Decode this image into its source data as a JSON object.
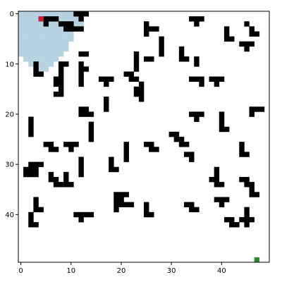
{
  "grid": {
    "rows": 50,
    "cols": 50,
    "colors": {
      "background": "#ffffff",
      "wall": "#000000",
      "explored": "#b7d3e2",
      "agent": "#cc1f33",
      "goal": "#2e8b2e",
      "frame": "#000000"
    },
    "agent": [
      4,
      1
    ],
    "goal": [
      47,
      49
    ],
    "explored_rows": [
      {
        "y": 0,
        "x0": 0,
        "x1": 12
      },
      {
        "y": 1,
        "x0": 0,
        "x1": 12
      },
      {
        "y": 2,
        "x0": 0,
        "x1": 12
      },
      {
        "y": 3,
        "x0": 0,
        "x1": 11
      },
      {
        "y": 4,
        "x0": 0,
        "x1": 10
      },
      {
        "y": 5,
        "x0": 0,
        "x1": 10
      },
      {
        "y": 6,
        "x0": 0,
        "x1": 9
      },
      {
        "y": 7,
        "x0": 0,
        "x1": 9
      },
      {
        "y": 8,
        "x0": 0,
        "x1": 8
      },
      {
        "y": 9,
        "x0": 1,
        "x1": 7
      },
      {
        "y": 10,
        "x0": 2,
        "x1": 6
      },
      {
        "y": 11,
        "x0": 3,
        "x1": 5
      }
    ],
    "walls": [
      [
        11,
        0
      ],
      [
        12,
        0
      ],
      [
        13,
        0
      ],
      [
        12,
        1
      ],
      [
        5,
        1
      ],
      [
        6,
        1
      ],
      [
        7,
        1
      ],
      [
        5,
        2
      ],
      [
        8,
        2
      ],
      [
        9,
        2
      ],
      [
        10,
        2
      ],
      [
        9,
        3
      ],
      [
        10,
        3
      ],
      [
        11,
        3
      ],
      [
        12,
        3
      ],
      [
        25,
        2
      ],
      [
        25,
        3
      ],
      [
        26,
        3
      ],
      [
        27,
        3
      ],
      [
        25,
        4
      ],
      [
        34,
        1
      ],
      [
        35,
        1
      ],
      [
        36,
        1
      ],
      [
        35,
        2
      ],
      [
        45,
        2
      ],
      [
        46,
        3
      ],
      [
        46,
        4
      ],
      [
        47,
        4
      ],
      [
        41,
        3
      ],
      [
        41,
        4
      ],
      [
        41,
        5
      ],
      [
        42,
        5
      ],
      [
        44,
        6
      ],
      [
        45,
        6
      ],
      [
        46,
        6
      ],
      [
        45,
        7
      ],
      [
        12,
        8
      ],
      [
        13,
        8
      ],
      [
        32,
        7
      ],
      [
        32,
        8
      ],
      [
        32,
        9
      ],
      [
        33,
        9
      ],
      [
        25,
        9
      ],
      [
        26,
        9
      ],
      [
        23,
        8
      ],
      [
        23,
        9
      ],
      [
        23,
        10
      ],
      [
        23,
        11
      ],
      [
        28,
        5
      ],
      [
        28,
        6
      ],
      [
        28,
        7
      ],
      [
        28,
        8
      ],
      [
        35,
        9
      ],
      [
        35,
        10
      ],
      [
        3,
        10
      ],
      [
        3,
        11
      ],
      [
        3,
        12
      ],
      [
        4,
        12
      ],
      [
        8,
        10
      ],
      [
        9,
        10
      ],
      [
        8,
        11
      ],
      [
        8,
        12
      ],
      [
        12,
        10
      ],
      [
        12,
        11
      ],
      [
        13,
        11
      ],
      [
        12,
        12
      ],
      [
        12,
        13
      ],
      [
        12,
        14
      ],
      [
        7,
        13
      ],
      [
        8,
        13
      ],
      [
        7,
        14
      ],
      [
        8,
        14
      ],
      [
        16,
        13
      ],
      [
        17,
        13
      ],
      [
        18,
        13
      ],
      [
        17,
        14
      ],
      [
        21,
        12
      ],
      [
        22,
        12
      ],
      [
        22,
        13
      ],
      [
        23,
        13
      ],
      [
        38,
        13
      ],
      [
        39,
        13
      ],
      [
        40,
        13
      ],
      [
        39,
        14
      ],
      [
        34,
        13
      ],
      [
        35,
        13
      ],
      [
        36,
        13
      ],
      [
        36,
        14
      ],
      [
        24,
        14
      ],
      [
        24,
        15
      ],
      [
        24,
        16
      ],
      [
        24,
        17
      ],
      [
        23,
        15
      ],
      [
        23,
        16
      ],
      [
        8,
        15
      ],
      [
        8,
        16
      ],
      [
        7,
        16
      ],
      [
        17,
        17
      ],
      [
        17,
        18
      ],
      [
        17,
        19
      ],
      [
        12,
        19
      ],
      [
        13,
        19
      ],
      [
        12,
        20
      ],
      [
        13,
        20
      ],
      [
        14,
        20
      ],
      [
        34,
        20
      ],
      [
        35,
        20
      ],
      [
        36,
        20
      ],
      [
        35,
        21
      ],
      [
        46,
        19
      ],
      [
        47,
        19
      ],
      [
        48,
        19
      ],
      [
        46,
        20
      ],
      [
        40,
        20
      ],
      [
        40,
        21
      ],
      [
        40,
        22
      ],
      [
        40,
        23
      ],
      [
        41,
        23
      ],
      [
        2,
        21
      ],
      [
        2,
        22
      ],
      [
        2,
        23
      ],
      [
        2,
        24
      ],
      [
        14,
        22
      ],
      [
        14,
        23
      ],
      [
        14,
        24
      ],
      [
        14,
        25
      ],
      [
        30,
        24
      ],
      [
        31,
        24
      ],
      [
        31,
        25
      ],
      [
        32,
        25
      ],
      [
        32,
        26
      ],
      [
        33,
        26
      ],
      [
        5,
        26
      ],
      [
        6,
        26
      ],
      [
        6,
        27
      ],
      [
        7,
        27
      ],
      [
        9,
        26
      ],
      [
        10,
        26
      ],
      [
        11,
        26
      ],
      [
        10,
        27
      ],
      [
        25,
        26
      ],
      [
        26,
        26
      ],
      [
        26,
        27
      ],
      [
        27,
        27
      ],
      [
        21,
        26
      ],
      [
        21,
        27
      ],
      [
        21,
        28
      ],
      [
        21,
        29
      ],
      [
        44,
        26
      ],
      [
        44,
        27
      ],
      [
        44,
        28
      ],
      [
        45,
        28
      ],
      [
        33,
        28
      ],
      [
        34,
        28
      ],
      [
        34,
        29
      ],
      [
        18,
        29
      ],
      [
        18,
        30
      ],
      [
        18,
        31
      ],
      [
        19,
        31
      ],
      [
        12,
        29
      ],
      [
        12,
        30
      ],
      [
        12,
        31
      ],
      [
        12,
        32
      ],
      [
        1,
        31
      ],
      [
        2,
        31
      ],
      [
        3,
        31
      ],
      [
        1,
        32
      ],
      [
        2,
        32
      ],
      [
        3,
        32
      ],
      [
        2,
        30
      ],
      [
        3,
        30
      ],
      [
        4,
        30
      ],
      [
        39,
        31
      ],
      [
        39,
        32
      ],
      [
        38,
        33
      ],
      [
        39,
        33
      ],
      [
        39,
        34
      ],
      [
        40,
        34
      ],
      [
        6,
        32
      ],
      [
        6,
        33
      ],
      [
        7,
        33
      ],
      [
        7,
        34
      ],
      [
        8,
        34
      ],
      [
        9,
        32
      ],
      [
        9,
        33
      ],
      [
        9,
        34
      ],
      [
        10,
        34
      ],
      [
        44,
        33
      ],
      [
        45,
        33
      ],
      [
        45,
        34
      ],
      [
        46,
        34
      ],
      [
        46,
        35
      ],
      [
        46,
        36
      ],
      [
        47,
        36
      ],
      [
        19,
        36
      ],
      [
        20,
        36
      ],
      [
        21,
        36
      ],
      [
        19,
        37
      ],
      [
        19,
        38
      ],
      [
        19,
        39
      ],
      [
        20,
        37
      ],
      [
        20,
        38
      ],
      [
        21,
        38
      ],
      [
        22,
        38
      ],
      [
        3,
        37
      ],
      [
        3,
        38
      ],
      [
        3,
        39
      ],
      [
        4,
        39
      ],
      [
        25,
        38
      ],
      [
        25,
        39
      ],
      [
        25,
        40
      ],
      [
        26,
        40
      ],
      [
        33,
        38
      ],
      [
        34,
        38
      ],
      [
        34,
        39
      ],
      [
        35,
        39
      ],
      [
        39,
        37
      ],
      [
        40,
        37
      ],
      [
        41,
        37
      ],
      [
        40,
        38
      ],
      [
        11,
        40
      ],
      [
        12,
        40
      ],
      [
        13,
        40
      ],
      [
        14,
        40
      ],
      [
        12,
        41
      ],
      [
        45,
        39
      ],
      [
        45,
        40
      ],
      [
        45,
        41
      ],
      [
        46,
        41
      ],
      [
        44,
        41
      ],
      [
        45,
        42
      ],
      [
        41,
        41
      ],
      [
        42,
        41
      ],
      [
        42,
        42
      ],
      [
        43,
        42
      ],
      [
        2,
        40
      ],
      [
        2,
        41
      ],
      [
        2,
        42
      ],
      [
        3,
        42
      ]
    ]
  },
  "axes": {
    "x_ticks": [
      "0",
      "10",
      "20",
      "30",
      "40"
    ],
    "y_ticks": [
      "0",
      "10",
      "20",
      "30",
      "40"
    ]
  }
}
